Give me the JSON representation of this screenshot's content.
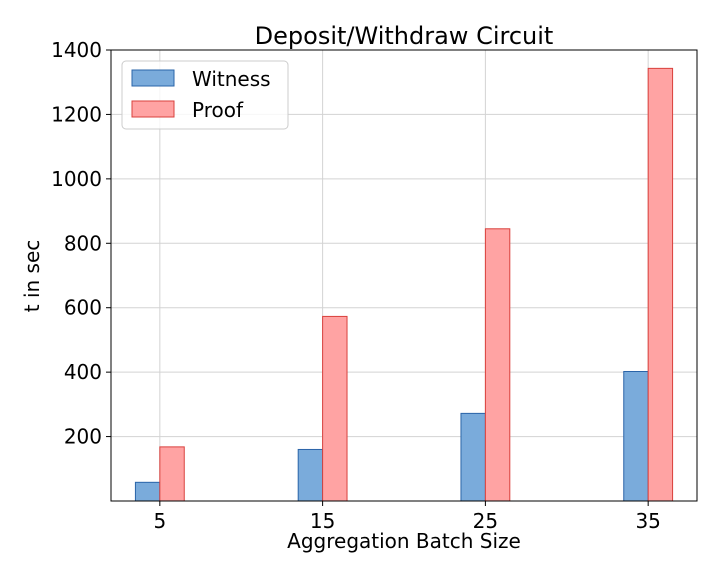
{
  "chart_data": {
    "type": "bar",
    "title": "Deposit/Withdraw Circuit",
    "xlabel": "Aggregation Batch Size",
    "ylabel": "t in sec",
    "x": [
      5,
      15,
      25,
      35
    ],
    "x_ticks": [
      "5",
      "15",
      "25",
      "35"
    ],
    "xlim": [
      2,
      38
    ],
    "ylim": [
      0,
      1400
    ],
    "y_ticks": [
      200,
      400,
      600,
      800,
      1000,
      1200,
      1400
    ],
    "bar_width": 1.5,
    "grid": true,
    "legend": "top-left",
    "series": [
      {
        "name": "Witness",
        "color": "#7aabdb",
        "edge": "#2a64a8",
        "values": [
          58,
          160,
          272,
          402
        ]
      },
      {
        "name": "Proof",
        "color": "#ffa3a3",
        "edge": "#d9403c",
        "values": [
          168,
          573,
          845,
          1343
        ]
      }
    ]
  }
}
